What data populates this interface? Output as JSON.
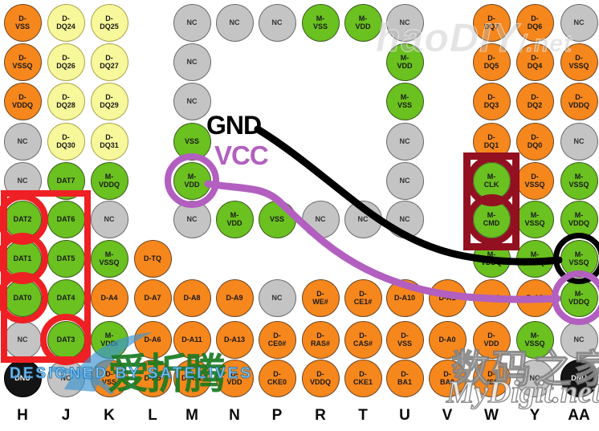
{
  "legend": {
    "gnd_label": "GND",
    "vcc_label": "VCC"
  },
  "colors": {
    "orange": "#F6871D",
    "yellow": "#F7F79B",
    "green": "#6AC11F",
    "gray": "#C4C4C4",
    "ball_black": "#141414",
    "red": "#EE2024",
    "darkred": "#931020",
    "purple": "#B25FC0",
    "line_black": "#000000",
    "watermark_blue": "#3E95D0"
  },
  "board": {
    "columns": [
      "H",
      "J",
      "K",
      "L",
      "M",
      "N",
      "P",
      "R",
      "T",
      "U",
      "V",
      "W",
      "Y",
      "AA"
    ]
  },
  "balls": [
    {
      "id": "H1",
      "label": [
        "D-",
        "VSS"
      ],
      "color": "orange"
    },
    {
      "id": "J1",
      "label": [
        "D-",
        "DQ24"
      ],
      "color": "yellow"
    },
    {
      "id": "K1",
      "label": [
        "D-",
        "DQ25"
      ],
      "color": "yellow"
    },
    {
      "id": "M1",
      "label": [
        "NC"
      ],
      "color": "gray"
    },
    {
      "id": "N1",
      "label": [
        "NC"
      ],
      "color": "gray"
    },
    {
      "id": "P1",
      "label": [
        "NC"
      ],
      "color": "gray"
    },
    {
      "id": "R1",
      "label": [
        "M-",
        "VSS"
      ],
      "color": "green"
    },
    {
      "id": "T1",
      "label": [
        "M-",
        "VDD"
      ],
      "color": "green"
    },
    {
      "id": "U1",
      "label": [
        "NC"
      ],
      "color": "gray"
    },
    {
      "id": "W1",
      "label": [
        "D-",
        "DQ7"
      ],
      "color": "orange"
    },
    {
      "id": "Y1",
      "label": [
        "D-",
        "DQ6"
      ],
      "color": "orange"
    },
    {
      "id": "AA1",
      "label": [
        "NC"
      ],
      "color": "gray"
    },
    {
      "id": "H2",
      "label": [
        "D-",
        "VSSQ"
      ],
      "color": "orange"
    },
    {
      "id": "J2",
      "label": [
        "D-",
        "DQ26"
      ],
      "color": "yellow"
    },
    {
      "id": "K2",
      "label": [
        "D-",
        "DQ27"
      ],
      "color": "yellow"
    },
    {
      "id": "M2",
      "label": [
        "NC"
      ],
      "color": "gray"
    },
    {
      "id": "U2",
      "label": [
        "M-",
        "VDD"
      ],
      "color": "green"
    },
    {
      "id": "W2",
      "label": [
        "D-",
        "DQ5"
      ],
      "color": "orange"
    },
    {
      "id": "Y2",
      "label": [
        "D-",
        "DQ4"
      ],
      "color": "orange"
    },
    {
      "id": "AA2",
      "label": [
        "D-",
        "VSSQ"
      ],
      "color": "orange"
    },
    {
      "id": "H3",
      "label": [
        "D-",
        "VDDQ"
      ],
      "color": "orange"
    },
    {
      "id": "J3",
      "label": [
        "D-",
        "DQ28"
      ],
      "color": "yellow"
    },
    {
      "id": "K3",
      "label": [
        "D-",
        "DQ29"
      ],
      "color": "yellow"
    },
    {
      "id": "M3",
      "label": [
        "NC"
      ],
      "color": "gray"
    },
    {
      "id": "U3",
      "label": [
        "M-",
        "VSS"
      ],
      "color": "green"
    },
    {
      "id": "W3",
      "label": [
        "D-",
        "DQ3"
      ],
      "color": "orange"
    },
    {
      "id": "Y3",
      "label": [
        "D-",
        "DQ2"
      ],
      "color": "orange"
    },
    {
      "id": "AA3",
      "label": [
        "D-",
        "VDDQ"
      ],
      "color": "orange"
    },
    {
      "id": "H4",
      "label": [
        "NC"
      ],
      "color": "gray"
    },
    {
      "id": "J4",
      "label": [
        "D-",
        "DQ30"
      ],
      "color": "yellow"
    },
    {
      "id": "K4",
      "label": [
        "D-",
        "DQ31"
      ],
      "color": "yellow"
    },
    {
      "id": "M4",
      "label": [
        "VSS"
      ],
      "color": "green"
    },
    {
      "id": "U4",
      "label": [
        "NC"
      ],
      "color": "gray"
    },
    {
      "id": "W4",
      "label": [
        "D-",
        "DQ1"
      ],
      "color": "orange"
    },
    {
      "id": "Y4",
      "label": [
        "D-",
        "DQ0"
      ],
      "color": "orange"
    },
    {
      "id": "AA4",
      "label": [
        "NC"
      ],
      "color": "gray"
    },
    {
      "id": "H5",
      "label": [
        "NC"
      ],
      "color": "gray"
    },
    {
      "id": "J5",
      "label": [
        "DAT7"
      ],
      "color": "green"
    },
    {
      "id": "K5",
      "label": [
        "M-",
        "VDDQ"
      ],
      "color": "green"
    },
    {
      "id": "M5",
      "label": [
        "M-",
        "VDD"
      ],
      "color": "green",
      "ring": "purple"
    },
    {
      "id": "U5",
      "label": [
        "NC"
      ],
      "color": "gray"
    },
    {
      "id": "W5",
      "label": [
        "M-",
        "CLK"
      ],
      "color": "green",
      "ring": "darkred"
    },
    {
      "id": "Y5",
      "label": [
        "D-",
        "VSSQ"
      ],
      "color": "orange"
    },
    {
      "id": "AA5",
      "label": [
        "M-",
        "VSSQ"
      ],
      "color": "green"
    },
    {
      "id": "H6",
      "label": [
        "DAT2"
      ],
      "color": "green",
      "ring": "red"
    },
    {
      "id": "J6",
      "label": [
        "DAT6"
      ],
      "color": "green"
    },
    {
      "id": "K6",
      "label": [
        "NC"
      ],
      "color": "gray"
    },
    {
      "id": "M6",
      "label": [
        "NC"
      ],
      "color": "gray"
    },
    {
      "id": "N6",
      "label": [
        "M-",
        "VDD"
      ],
      "color": "green"
    },
    {
      "id": "P6",
      "label": [
        "VSS"
      ],
      "color": "green"
    },
    {
      "id": "R6",
      "label": [
        "NC"
      ],
      "color": "gray"
    },
    {
      "id": "T6",
      "label": [
        "NC"
      ],
      "color": "gray"
    },
    {
      "id": "U6",
      "label": [
        "NC"
      ],
      "color": "gray"
    },
    {
      "id": "W6",
      "label": [
        "M-",
        "CMD"
      ],
      "color": "green",
      "ring": "darkred"
    },
    {
      "id": "Y6",
      "label": [
        "M-",
        "VSSQ"
      ],
      "color": "green"
    },
    {
      "id": "AA6",
      "label": [
        "M-",
        "VDDQ"
      ],
      "color": "green"
    },
    {
      "id": "H7",
      "label": [
        "DAT1"
      ],
      "color": "green",
      "ring": "red"
    },
    {
      "id": "J7",
      "label": [
        "DAT5"
      ],
      "color": "green"
    },
    {
      "id": "K7",
      "label": [
        "M-",
        "VSSQ"
      ],
      "color": "green"
    },
    {
      "id": "L7",
      "label": [
        "D-TQ"
      ],
      "color": "orange"
    },
    {
      "id": "W7",
      "label": [
        "M-",
        "VDDQ"
      ],
      "color": "green"
    },
    {
      "id": "Y7",
      "label": [
        "M-",
        "VSSQ"
      ],
      "color": "green"
    },
    {
      "id": "AA7",
      "label": [
        "M-",
        "VSSQ"
      ],
      "color": "green",
      "ring": "black"
    },
    {
      "id": "H8",
      "label": [
        "DAT0"
      ],
      "color": "green",
      "ring": "red"
    },
    {
      "id": "J8",
      "label": [
        "DAT4"
      ],
      "color": "green"
    },
    {
      "id": "K8",
      "label": [
        "D-A4"
      ],
      "color": "orange"
    },
    {
      "id": "L8",
      "label": [
        "D-A7"
      ],
      "color": "orange"
    },
    {
      "id": "M8",
      "label": [
        "D-A8"
      ],
      "color": "orange"
    },
    {
      "id": "N8",
      "label": [
        "D-A9"
      ],
      "color": "orange"
    },
    {
      "id": "P8",
      "label": [
        "NC"
      ],
      "color": "gray"
    },
    {
      "id": "R8",
      "label": [
        "D-",
        "WE#"
      ],
      "color": "orange"
    },
    {
      "id": "T8",
      "label": [
        "D-",
        "CE1#"
      ],
      "color": "orange"
    },
    {
      "id": "U8",
      "label": [
        "D-A10"
      ],
      "color": "orange"
    },
    {
      "id": "V8",
      "label": [
        "D-A1"
      ],
      "color": "orange"
    },
    {
      "id": "W8",
      "label": [
        "D-A2"
      ],
      "color": "orange"
    },
    {
      "id": "Y8",
      "label": [
        "D-A3"
      ],
      "color": "orange"
    },
    {
      "id": "AA8",
      "label": [
        "M-",
        "VDDQ"
      ],
      "color": "green",
      "ring": "purple"
    },
    {
      "id": "H9",
      "label": [
        "NC"
      ],
      "color": "gray"
    },
    {
      "id": "J9",
      "label": [
        "DAT3"
      ],
      "color": "green",
      "ring": "red"
    },
    {
      "id": "K9",
      "label": [
        "M-",
        "VDDi"
      ],
      "color": "green"
    },
    {
      "id": "L9",
      "label": [
        "D-A6"
      ],
      "color": "orange"
    },
    {
      "id": "M9",
      "label": [
        "D-A11"
      ],
      "color": "orange"
    },
    {
      "id": "N9",
      "label": [
        "D-A13"
      ],
      "color": "orange"
    },
    {
      "id": "P9",
      "label": [
        "D-",
        "CE0#"
      ],
      "color": "orange"
    },
    {
      "id": "R9",
      "label": [
        "D-",
        "RAS#"
      ],
      "color": "orange"
    },
    {
      "id": "T9",
      "label": [
        "D-",
        "CAS#"
      ],
      "color": "orange"
    },
    {
      "id": "U9",
      "label": [
        "D-",
        "VSS"
      ],
      "color": "orange"
    },
    {
      "id": "V9",
      "label": [
        "D-A0"
      ],
      "color": "orange"
    },
    {
      "id": "W9",
      "label": [
        "D-",
        "VDD"
      ],
      "color": "orange"
    },
    {
      "id": "Y9",
      "label": [
        "M-",
        "VSSQ"
      ],
      "color": "green"
    },
    {
      "id": "AA9",
      "label": [
        "NC"
      ],
      "color": "gray"
    },
    {
      "id": "H10",
      "label": [
        "DNU"
      ],
      "color": "black"
    },
    {
      "id": "J10",
      "label": [
        "NC"
      ],
      "color": "gray"
    },
    {
      "id": "K10",
      "label": [
        "D-",
        "VSS"
      ],
      "color": "orange"
    },
    {
      "id": "L10",
      "label": [
        "D-A5"
      ],
      "color": "orange"
    },
    {
      "id": "M10",
      "label": [
        "D-A12"
      ],
      "color": "orange"
    },
    {
      "id": "N10",
      "label": [
        "D-",
        "VDD"
      ],
      "color": "orange"
    },
    {
      "id": "P10",
      "label": [
        "D-",
        "CKE0"
      ],
      "color": "orange"
    },
    {
      "id": "R10",
      "label": [
        "D-",
        "VDDQ"
      ],
      "color": "orange"
    },
    {
      "id": "T10",
      "label": [
        "D-",
        "CKE1"
      ],
      "color": "orange"
    },
    {
      "id": "U10",
      "label": [
        "D-",
        "BA1"
      ],
      "color": "orange"
    },
    {
      "id": "V10",
      "label": [
        "D-",
        "BA0"
      ],
      "color": "orange"
    },
    {
      "id": "W10",
      "label": [
        "D-",
        "VSS"
      ],
      "color": "orange"
    },
    {
      "id": "Y10",
      "label": [
        "NC"
      ],
      "color": "gray"
    },
    {
      "id": "AA10",
      "label": [
        "DNU"
      ],
      "color": "black"
    }
  ],
  "boxes": [
    {
      "from": "H6",
      "to": "J9",
      "color": "red",
      "pad": [
        36,
        31,
        29,
        27
      ],
      "stroke": 8
    },
    {
      "from": "W5",
      "to": "W6",
      "color": "darkred",
      "pad": [
        35,
        35,
        39,
        35
      ],
      "stroke": 9
    }
  ],
  "watermarks": {
    "top_right_main": "haoDIY",
    "top_right_suffix": "/.net",
    "designed_by": "DESIGNED BY SATELIVES",
    "cn_green": "爱折腾",
    "mydigit_cn": "数码之家",
    "mydigit_en": "MyDigit.net"
  }
}
